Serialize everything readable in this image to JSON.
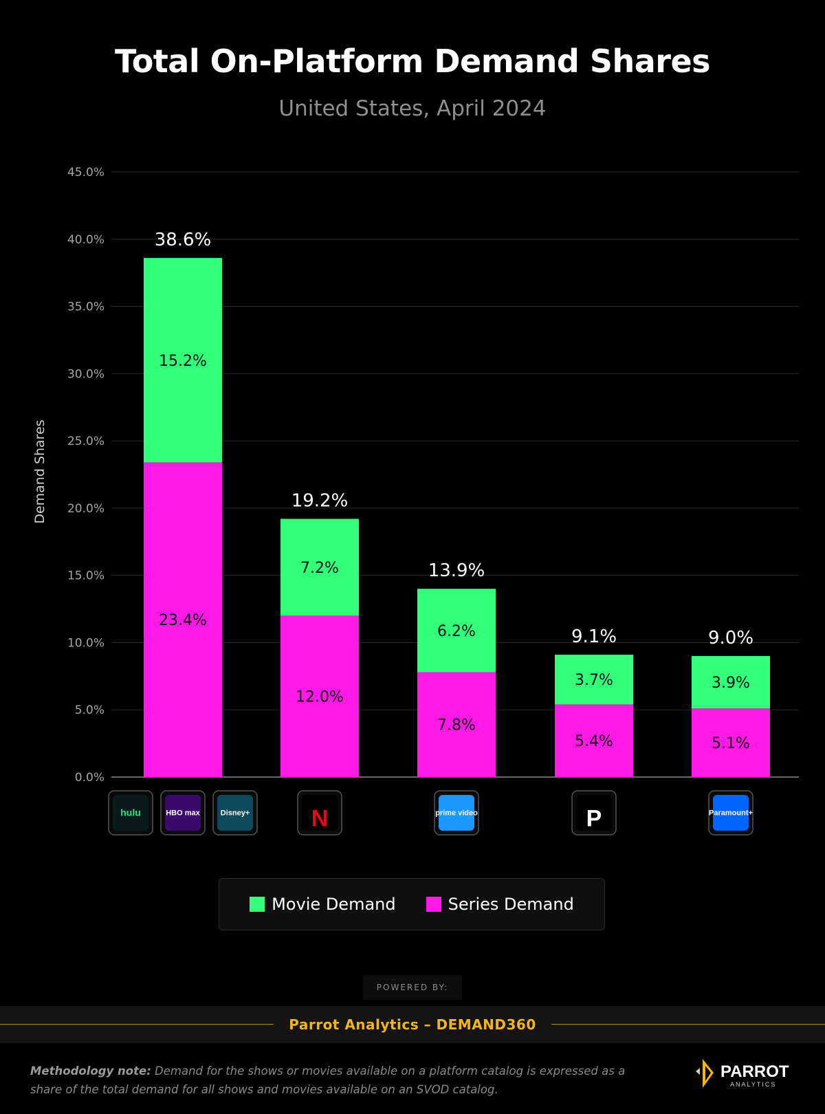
{
  "chart_data": {
    "type": "bar",
    "stacked": true,
    "title": "Total On-Platform Demand Shares",
    "subtitle": "United States, April 2024",
    "ylabel": "Demand Shares",
    "xlabel": "",
    "ylim": [
      0,
      45
    ],
    "yticks": [
      "0.0%",
      "5.0%",
      "10.0%",
      "15.0%",
      "20.0%",
      "25.0%",
      "30.0%",
      "35.0%",
      "40.0%",
      "45.0%"
    ],
    "grid": true,
    "legend_position": "bottom",
    "categories": [
      "Hulu / HBO Max / Disney+",
      "Netflix",
      "Prime Video",
      "Peacock",
      "Paramount+"
    ],
    "totals": [
      "38.6%",
      "19.2%",
      "13.9%",
      "9.1%",
      "9.0%"
    ],
    "totals_values": [
      38.6,
      19.2,
      13.9,
      9.1,
      9.0
    ],
    "series": [
      {
        "name": "Series Demand",
        "color": "#ff19e6",
        "values": [
          23.4,
          12.0,
          7.8,
          5.4,
          5.1
        ],
        "labels": [
          "23.4%",
          "12.0%",
          "7.8%",
          "5.4%",
          "5.1%"
        ]
      },
      {
        "name": "Movie Demand",
        "color": "#33ff7a",
        "values": [
          15.2,
          7.2,
          6.2,
          3.7,
          3.9
        ],
        "labels": [
          "15.2%",
          "7.2%",
          "6.2%",
          "3.7%",
          "3.9%"
        ]
      }
    ],
    "platform_logos": [
      [
        {
          "icon": "hulu-logo-icon",
          "text": "hulu",
          "bg": "#0b1a1a",
          "color": "#1ce783"
        },
        {
          "icon": "hbo-max-logo-icon",
          "text": "HBO max",
          "bg": "#3b0a6e",
          "color": "#ffffff"
        },
        {
          "icon": "disney-plus-logo-icon",
          "text": "Disney+",
          "bg": "#0e4a5c",
          "color": "#ffffff"
        }
      ],
      [
        {
          "icon": "netflix-logo-icon",
          "text": "N",
          "bg": "#000000",
          "color": "#e50914"
        }
      ],
      [
        {
          "icon": "prime-video-logo-icon",
          "text": "prime video",
          "bg": "#1a98ff",
          "color": "#ffffff"
        }
      ],
      [
        {
          "icon": "peacock-logo-icon",
          "text": "P",
          "bg": "#000000",
          "color": "#ffffff"
        }
      ],
      [
        {
          "icon": "paramount-plus-logo-icon",
          "text": "Paramount+",
          "bg": "#0064ff",
          "color": "#ffffff"
        }
      ]
    ]
  },
  "legend": {
    "items": [
      {
        "label": "Movie Demand",
        "color": "#33ff7a"
      },
      {
        "label": "Series Demand",
        "color": "#ff19e6"
      }
    ]
  },
  "footer": {
    "powered_by": "POWERED BY:",
    "brand": "Parrot Analytics – DEMAND360",
    "note_label": "Methodology note:",
    "note_text": " Demand for the shows or movies available on a platform catalog is expressed as a share of the total demand for all shows and movies available on an SVOD catalog.",
    "logo_main": "PARROT",
    "logo_sub": "ANALYTICS"
  },
  "colors": {
    "accent": "#f2b61c"
  }
}
